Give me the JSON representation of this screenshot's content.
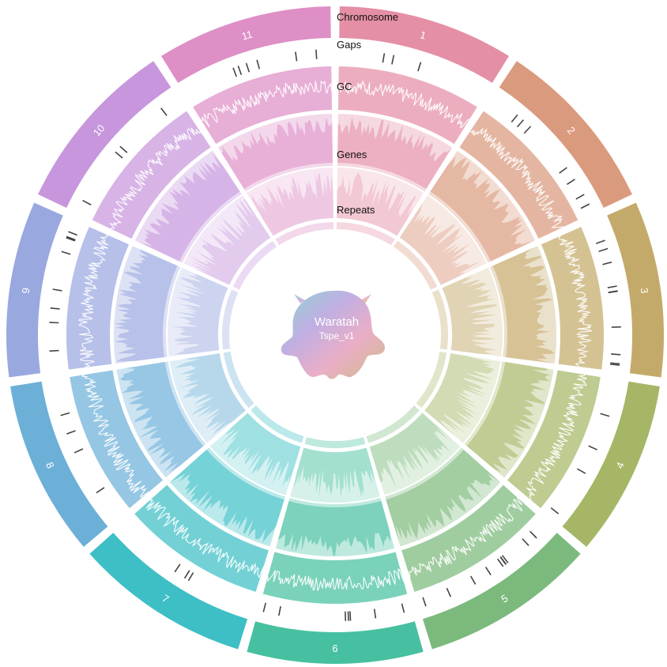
{
  "center": {
    "title": "Waratah",
    "subtitle": "Tspe_v1"
  },
  "track_labels": {
    "chromosome": "Chromosome",
    "gaps": "Gaps",
    "gc": "GC",
    "genes": "Genes",
    "repeats": "Repeats"
  },
  "chromosomes": [
    {
      "label": "1",
      "color": "#E48FA5"
    },
    {
      "label": "2",
      "color": "#DA9A7E"
    },
    {
      "label": "3",
      "color": "#C4AA6A"
    },
    {
      "label": "4",
      "color": "#A5B766"
    },
    {
      "label": "5",
      "color": "#7BBA7C"
    },
    {
      "label": "6",
      "color": "#46C0A0"
    },
    {
      "label": "7",
      "color": "#3DBFC5"
    },
    {
      "label": "8",
      "color": "#6CB0D8"
    },
    {
      "label": "9",
      "color": "#9AA8E0"
    },
    {
      "label": "10",
      "color": "#C796DC"
    },
    {
      "label": "11",
      "color": "#DE8FC6"
    }
  ]
}
